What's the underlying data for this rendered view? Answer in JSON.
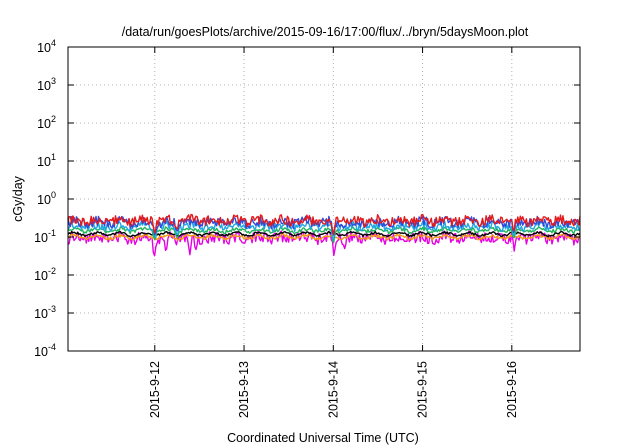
{
  "chart_data": {
    "type": "line",
    "title": "/data/run/goesPlots/archive/2015-09-16/17:00/flux/../bryn/5daysMoon.plot",
    "xlabel": "Coordinated Universal Time (UTC)",
    "ylabel": "cGy/day",
    "yscale": "log",
    "ylim": [
      0.0001,
      10000
    ],
    "y_ticks": [
      {
        "exp": "-4",
        "value": 0.0001
      },
      {
        "exp": "-3",
        "value": 0.001
      },
      {
        "exp": "-2",
        "value": 0.01
      },
      {
        "exp": "-1",
        "value": 0.1
      },
      {
        "exp": "0",
        "value": 1
      },
      {
        "exp": "1",
        "value": 10
      },
      {
        "exp": "2",
        "value": 100
      },
      {
        "exp": "3",
        "value": 1000
      },
      {
        "exp": "4",
        "value": 10000
      }
    ],
    "xlim": [
      "2015-09-11 00:40",
      "2015-09-16 18:20"
    ],
    "x_ticks": [
      "2015-9-12",
      "2015-9-13",
      "2015-9-14",
      "2015-9-15",
      "2015-9-16"
    ],
    "grid": true,
    "series": [
      {
        "color": "#e31a1c",
        "baseline": 0.27,
        "amplitude": 0.25,
        "dips": [
          {
            "x": "2015-09-12 00:00",
            "value": 0.12
          },
          {
            "x": "2015-09-12 06:00",
            "value": 0.15
          },
          {
            "x": "2015-09-14 00:00",
            "value": 0.1
          },
          {
            "x": "2015-09-16 00:30",
            "value": 0.12
          }
        ]
      },
      {
        "color": "#2f4bdc",
        "baseline": 0.24,
        "amplitude": 0.25,
        "dips": [
          {
            "x": "2015-09-12 00:00",
            "value": 0.11
          },
          {
            "x": "2015-09-12 06:00",
            "value": 0.13
          },
          {
            "x": "2015-09-14 00:00",
            "value": 0.09
          },
          {
            "x": "2015-09-16 00:30",
            "value": 0.11
          }
        ]
      },
      {
        "color": "#1fa7e0",
        "baseline": 0.19,
        "amplitude": 0.2,
        "dips": [
          {
            "x": "2015-09-12 00:00",
            "value": 0.09
          },
          {
            "x": "2015-09-12 06:00",
            "value": 0.1
          },
          {
            "x": "2015-09-14 00:00",
            "value": 0.07
          },
          {
            "x": "2015-09-16 00:30",
            "value": 0.09
          }
        ]
      },
      {
        "color": "#22b45a",
        "baseline": 0.15,
        "amplitude": 0.1,
        "dips": [
          {
            "x": "2015-09-12 00:00",
            "value": 0.08
          },
          {
            "x": "2015-09-12 06:00",
            "value": 0.09
          },
          {
            "x": "2015-09-14 00:00",
            "value": 0.06
          },
          {
            "x": "2015-09-16 00:30",
            "value": 0.08
          }
        ]
      },
      {
        "color": "#000000",
        "baseline": 0.12,
        "amplitude": 0.06,
        "dips": []
      },
      {
        "color": "#f39c12",
        "baseline": 0.1,
        "amplitude": 0.08,
        "dips": []
      },
      {
        "color": "#e600e6",
        "baseline": 0.095,
        "amplitude": 0.3,
        "dips": [
          {
            "x": "2015-09-11 00:50",
            "value": 0.055
          },
          {
            "x": "2015-09-11 23:50",
            "value": 0.028
          },
          {
            "x": "2015-09-12 03:00",
            "value": 0.035
          },
          {
            "x": "2015-09-12 09:30",
            "value": 0.03
          },
          {
            "x": "2015-09-12 11:00",
            "value": 0.04
          },
          {
            "x": "2015-09-13 00:00",
            "value": 0.06
          },
          {
            "x": "2015-09-14 00:10",
            "value": 0.03
          },
          {
            "x": "2015-09-14 03:00",
            "value": 0.045
          },
          {
            "x": "2015-09-16 00:40",
            "value": 0.04
          }
        ]
      }
    ]
  }
}
